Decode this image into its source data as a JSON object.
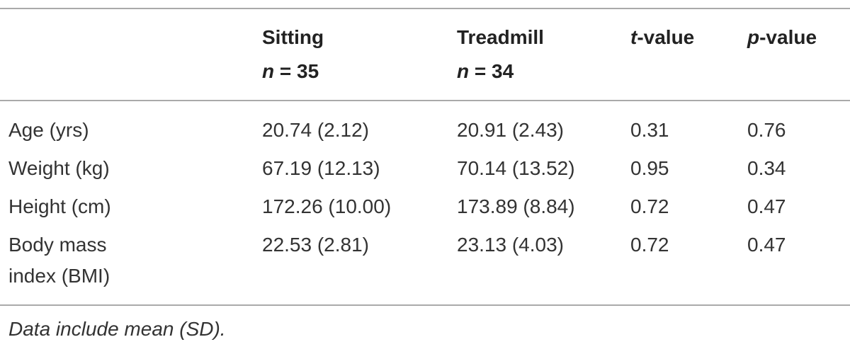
{
  "table": {
    "header": [
      [
        "Sitting",
        "n = 35"
      ],
      [
        "Treadmill",
        "n = 34"
      ],
      [
        "t-value"
      ],
      [
        "p-value"
      ]
    ],
    "rows": [
      [
        "Age (yrs)",
        "20.74 (2.12)",
        "20.91 (2.43)",
        "0.31",
        "0.76"
      ],
      [
        "Weight (kg)",
        "67.19 (12.13)",
        "70.14 (13.52)",
        "0.95",
        "0.34"
      ],
      [
        "Height (cm)",
        "172.26 (10.00)",
        "173.89 (8.84)",
        "0.72",
        "0.47"
      ],
      [
        "Body mass index (BMI)",
        "22.53 (2.81)",
        "23.13 (4.03)",
        "0.72",
        "0.47"
      ]
    ],
    "note": "Data include mean (SD)."
  }
}
